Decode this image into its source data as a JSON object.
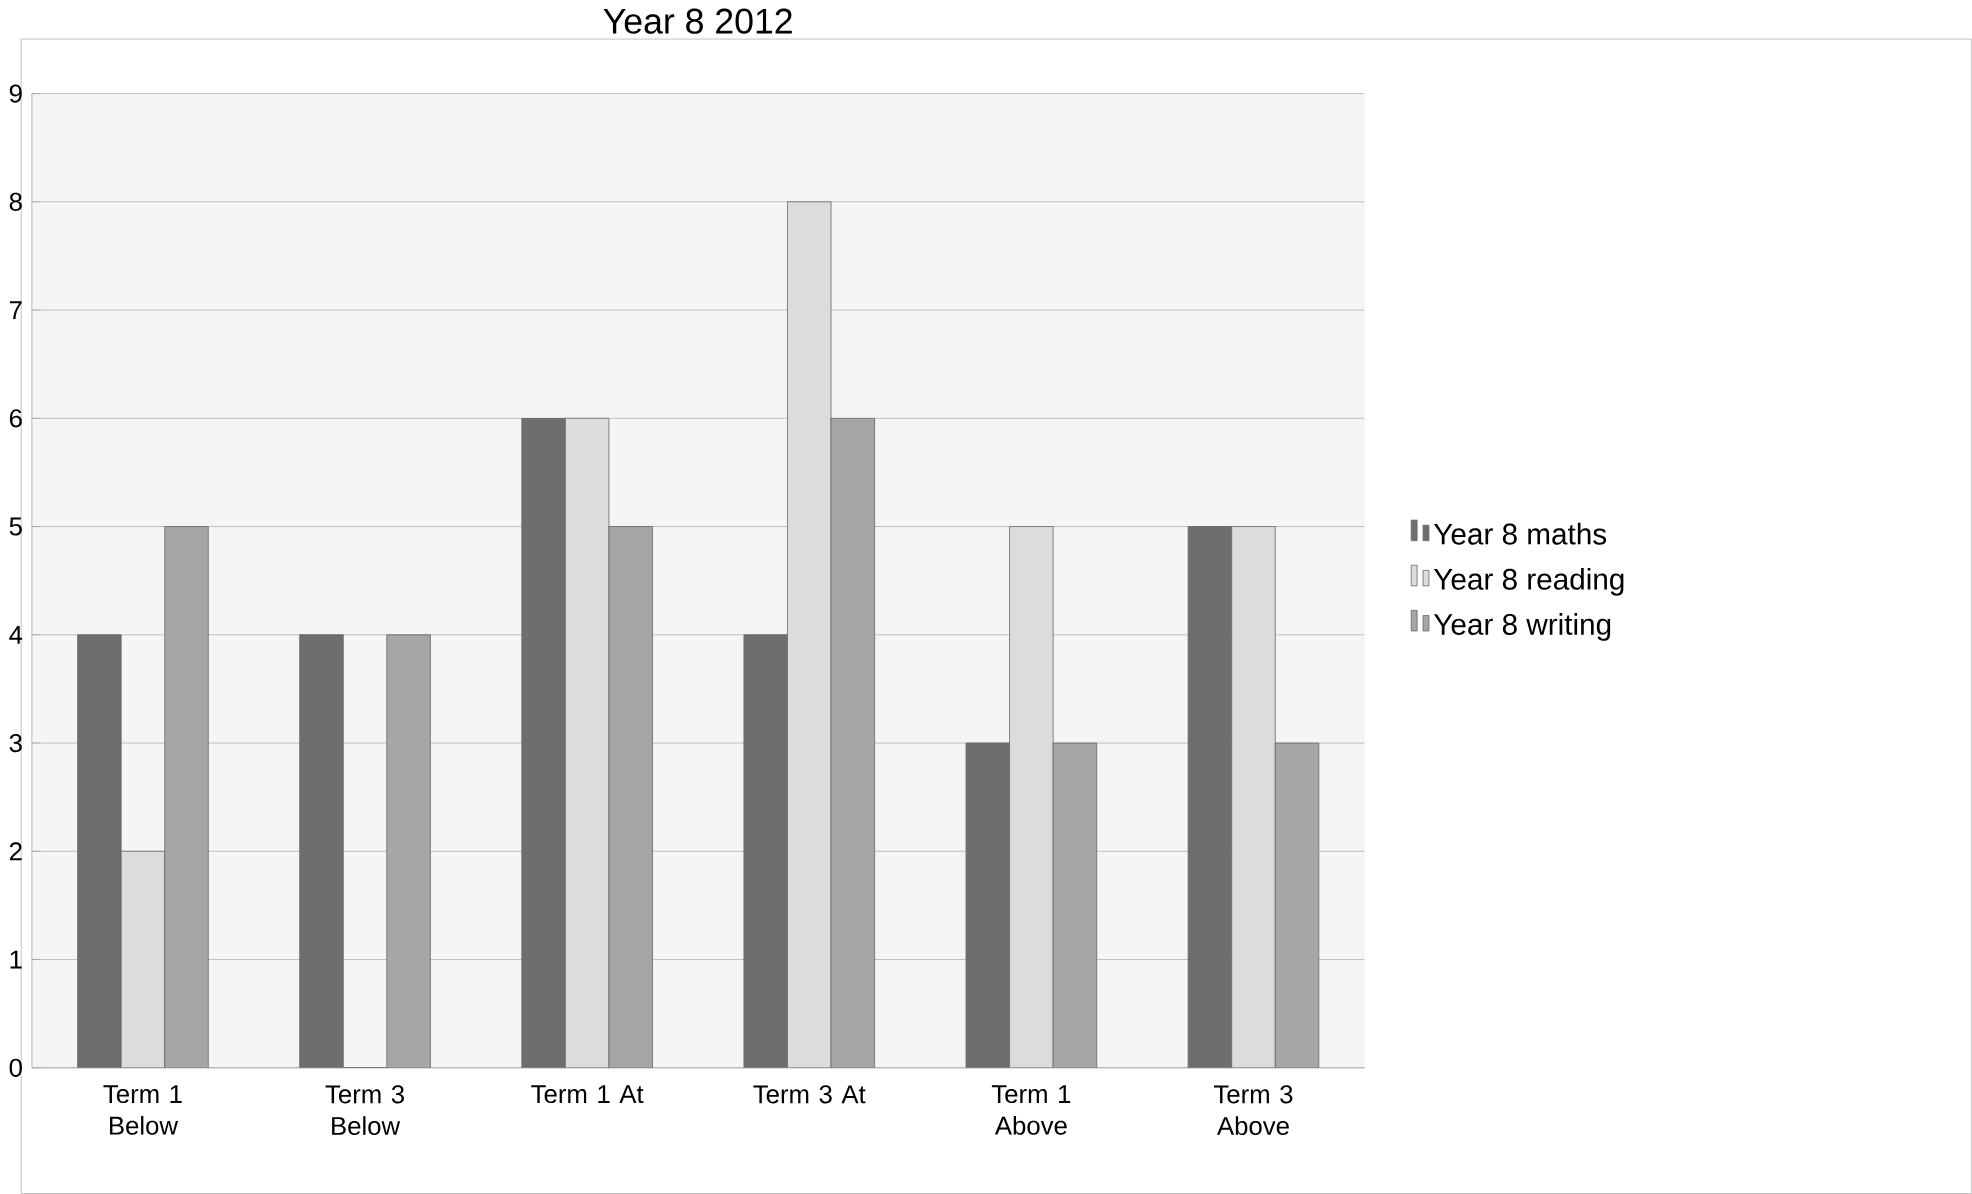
{
  "chart_data": {
    "type": "bar",
    "title": "Year 8 2012",
    "categories": [
      "Term 1 Below",
      "Term 3 Below",
      "Term 1 At",
      "Term 3 At",
      "Term 1 Above",
      "Term 3 Above"
    ],
    "series": [
      {
        "name": "Year 8 maths",
        "color": "#6e6e6e",
        "values": [
          4,
          4,
          6,
          4,
          3,
          5
        ]
      },
      {
        "name": "Year 8 reading",
        "color": "#dcdcdc",
        "values": [
          2,
          0,
          6,
          8,
          5,
          5
        ]
      },
      {
        "name": "Year 8 writing",
        "color": "#a6a6a6",
        "values": [
          5,
          4,
          5,
          6,
          3,
          3
        ]
      }
    ],
    "ylim": [
      0,
      9
    ],
    "yticks": [
      0,
      1,
      2,
      3,
      4,
      5,
      6,
      7,
      8,
      9
    ],
    "grid": "y",
    "legend": "right"
  }
}
